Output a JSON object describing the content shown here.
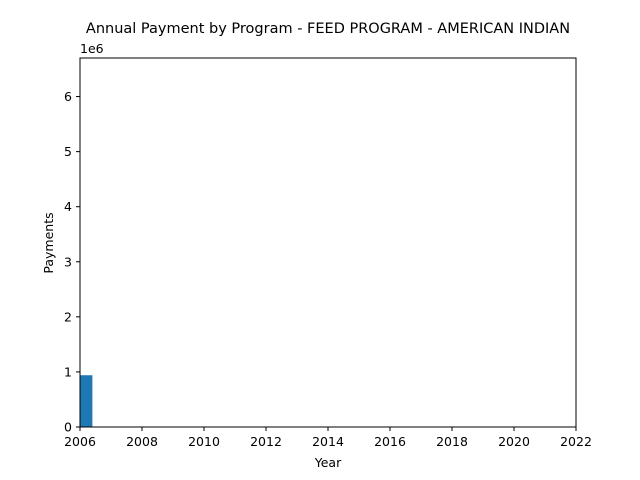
{
  "chart_data": {
    "type": "bar",
    "title": "Annual Payment by Program - FEED PROGRAM - AMERICAN INDIAN",
    "xlabel": "Year",
    "ylabel": "Payments",
    "y_offset_label": "1e6",
    "xlim": [
      2006,
      2022
    ],
    "ylim": [
      0,
      6700000
    ],
    "x_ticks": [
      2006,
      2008,
      2010,
      2012,
      2014,
      2016,
      2018,
      2020,
      2022
    ],
    "x_tick_labels": [
      "2006",
      "2008",
      "2010",
      "2012",
      "2014",
      "2016",
      "2018",
      "2020",
      "2022"
    ],
    "y_ticks": [
      0,
      1000000,
      2000000,
      3000000,
      4000000,
      5000000,
      6000000
    ],
    "y_tick_labels": [
      "0",
      "1",
      "2",
      "3",
      "4",
      "5",
      "6"
    ],
    "bar_width_years": 0.4,
    "bars": [
      {
        "x": 2006.2,
        "value": 940000
      }
    ],
    "bar_color": "#1f77b4",
    "grid": false,
    "legend": "none"
  }
}
